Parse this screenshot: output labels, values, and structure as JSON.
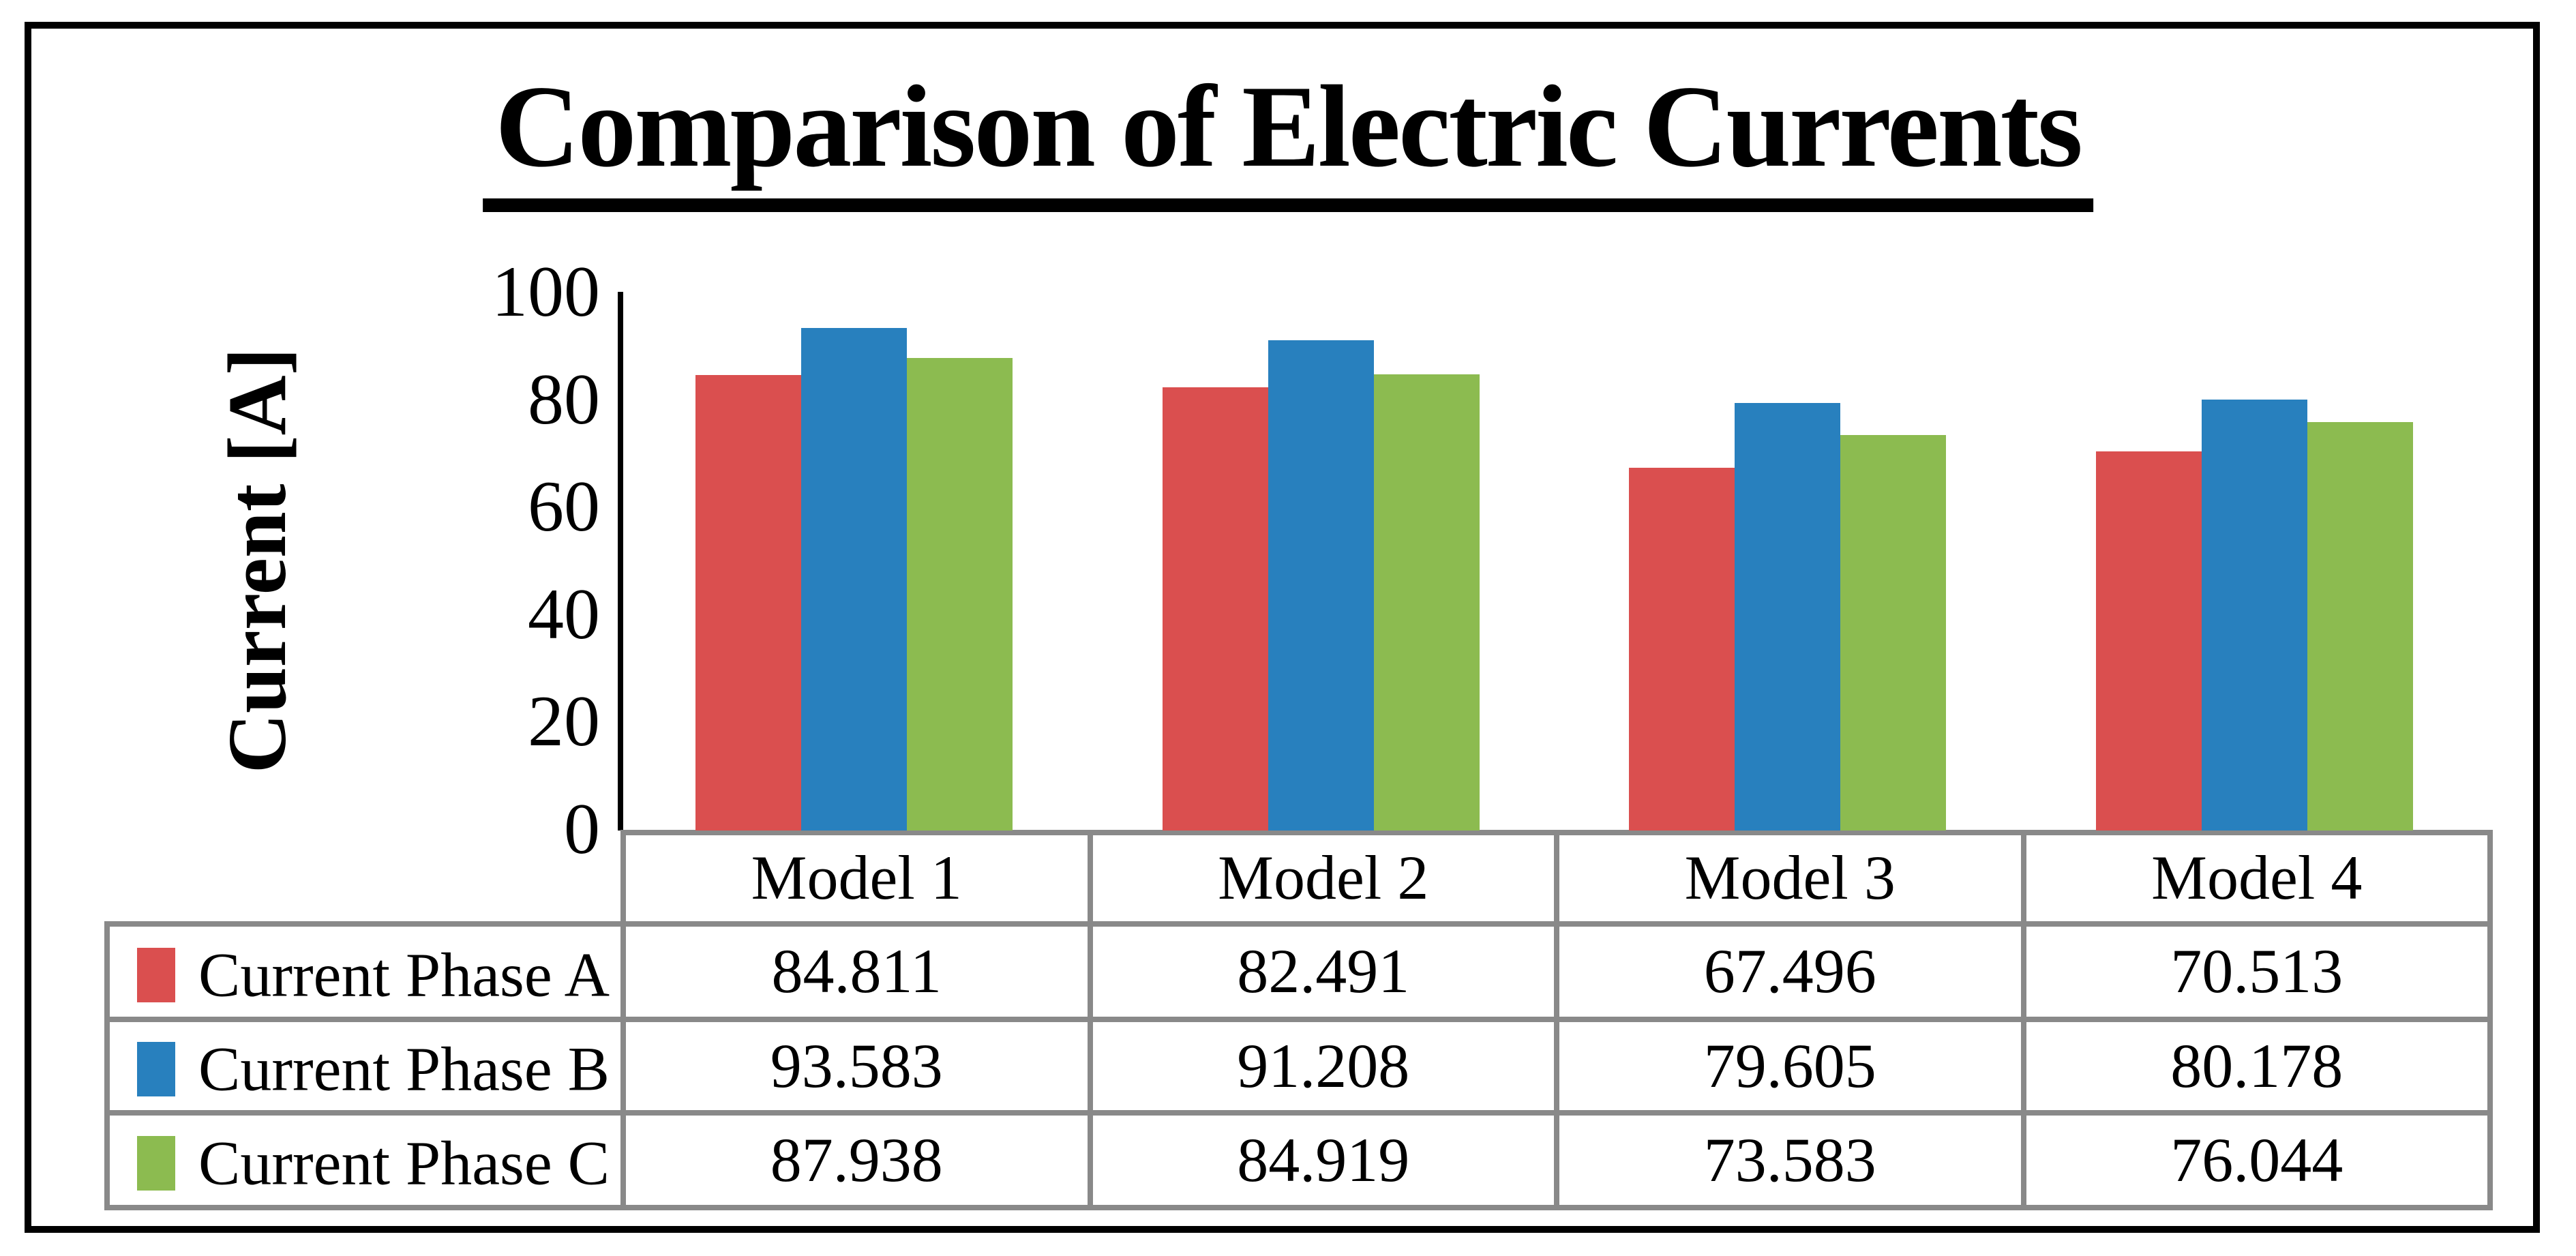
{
  "page": {
    "background": "#FFFFFF",
    "frame_color": "#000000"
  },
  "chart": {
    "title": "Comparison of Electric Currents",
    "y_axis_label": "Current [A]"
  },
  "chart_data": {
    "type": "bar",
    "title": "Comparison of Electric Currents",
    "xlabel": "",
    "ylabel": "Current [A]",
    "ylim": [
      0,
      100
    ],
    "yticks": [
      0,
      20,
      40,
      60,
      80,
      100
    ],
    "grid": false,
    "legend_position": "table-left-column",
    "categories": [
      "Model 1",
      "Model 2",
      "Model 3",
      "Model 4"
    ],
    "series": [
      {
        "name": "Current Phase A",
        "color": "#DA4F4F",
        "values": [
          84.811,
          82.491,
          67.496,
          70.513
        ]
      },
      {
        "name": "Current Phase B",
        "color": "#2880BE",
        "values": [
          93.583,
          91.208,
          79.605,
          80.178
        ]
      },
      {
        "name": "Current Phase C",
        "color": "#8CBB50",
        "values": [
          87.938,
          84.919,
          73.583,
          76.044
        ]
      }
    ]
  },
  "table": {
    "border_color": "#898989",
    "column_headers": [
      "Model 1",
      "Model 2",
      "Model 3",
      "Model 4"
    ],
    "rows": [
      {
        "label": "Current Phase A",
        "swatch_color": "#DA4F4F",
        "values": [
          "84.811",
          "82.491",
          "67.496",
          "70.513"
        ]
      },
      {
        "label": "Current Phase B",
        "swatch_color": "#2880BE",
        "values": [
          "93.583",
          "91.208",
          "79.605",
          "80.178"
        ]
      },
      {
        "label": "Current Phase C",
        "swatch_color": "#8CBB50",
        "values": [
          "87.938",
          "84.919",
          "73.583",
          "76.044"
        ]
      }
    ]
  }
}
